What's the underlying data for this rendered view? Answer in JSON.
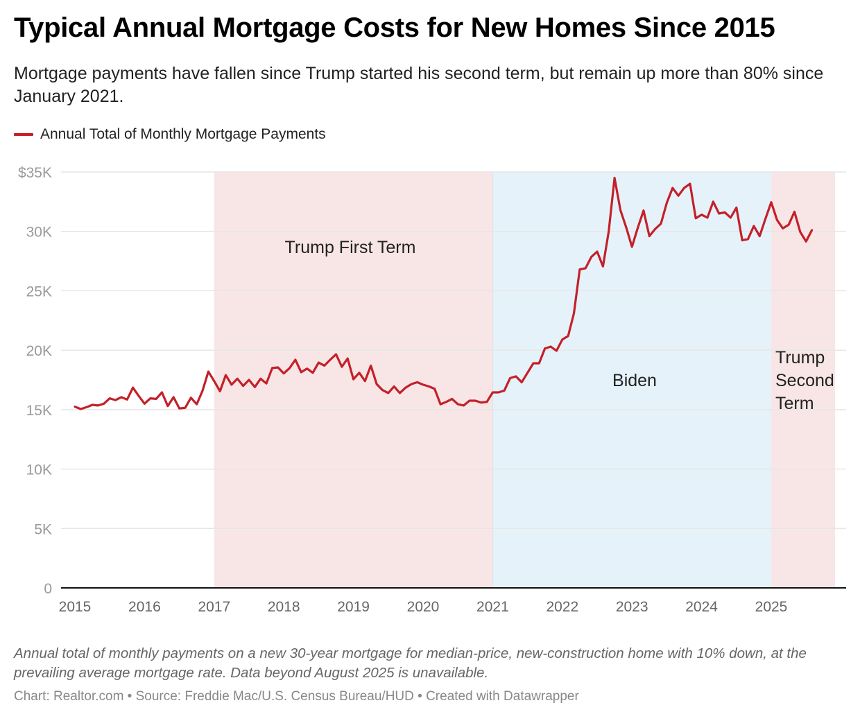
{
  "header": {
    "title": "Typical Annual Mortgage Costs for New Homes Since 2015",
    "subtitle": "Mortgage payments have fallen since Trump started his second term, but remain up more than 80% since January 2021."
  },
  "legend": {
    "label": "Annual Total of Monthly Mortgage Payments",
    "color": "#c3202a"
  },
  "footer": {
    "notes": "Annual total of monthly payments on a new 30-year mortgage for median-price, new-construction home with 10% down, at the prevailing average mortgage rate. Data beyond August 2025 is unavailable.",
    "source": "Chart: Realtor.com • Source: Freddie Mac/U.S. Census Bureau/HUD • Created with Datawrapper"
  },
  "chart_data": {
    "type": "line",
    "title": "Typical Annual Mortgage Costs for New Homes Since 2015",
    "xlabel": "",
    "ylabel": "",
    "x_start": "2015-01",
    "x_end": "2025-08",
    "x_frequency": "monthly",
    "xlim": [
      2014.9,
      2025.95
    ],
    "ylim": [
      0,
      35000
    ],
    "y_ticks": [
      {
        "value": 0,
        "label": "0"
      },
      {
        "value": 5000,
        "label": "5K"
      },
      {
        "value": 10000,
        "label": "10K"
      },
      {
        "value": 15000,
        "label": "15K"
      },
      {
        "value": 20000,
        "label": "20K"
      },
      {
        "value": 25000,
        "label": "25K"
      },
      {
        "value": 30000,
        "label": "30K"
      },
      {
        "value": 35000,
        "label": "$35K"
      }
    ],
    "x_ticks": [
      {
        "value": 2015,
        "label": "2015"
      },
      {
        "value": 2016,
        "label": "2016"
      },
      {
        "value": 2017,
        "label": "2017"
      },
      {
        "value": 2018,
        "label": "2018"
      },
      {
        "value": 2019,
        "label": "2019"
      },
      {
        "value": 2020,
        "label": "2020"
      },
      {
        "value": 2021,
        "label": "2021"
      },
      {
        "value": 2022,
        "label": "2022"
      },
      {
        "value": 2023,
        "label": "2023"
      },
      {
        "value": 2024,
        "label": "2024"
      },
      {
        "value": 2025,
        "label": "2025"
      }
    ],
    "grid": true,
    "legend_position": "top-left",
    "series": [
      {
        "name": "Annual Total of Monthly Mortgage Payments",
        "color": "#c3202a",
        "values": [
          15250,
          15050,
          15200,
          15400,
          15350,
          15500,
          15950,
          15800,
          16050,
          15850,
          16850,
          16150,
          15500,
          15950,
          15900,
          16450,
          15300,
          16050,
          15100,
          15150,
          16000,
          15450,
          16600,
          18200,
          17400,
          16550,
          17900,
          17100,
          17600,
          17000,
          17500,
          16900,
          17600,
          17200,
          18500,
          18550,
          18050,
          18500,
          19200,
          18150,
          18450,
          18100,
          18950,
          18700,
          19200,
          19650,
          18600,
          19300,
          17550,
          18100,
          17400,
          18700,
          17150,
          16650,
          16400,
          16950,
          16400,
          16850,
          17150,
          17300,
          17100,
          16950,
          16750,
          15450,
          15650,
          15900,
          15450,
          15350,
          15750,
          15750,
          15600,
          15650,
          16450,
          16450,
          16600,
          17650,
          17800,
          17300,
          18100,
          18900,
          18900,
          20150,
          20300,
          19950,
          20900,
          21200,
          23100,
          26800,
          26900,
          27850,
          28300,
          27050,
          30000,
          34500,
          31800,
          30350,
          28700,
          30300,
          31750,
          29600,
          30200,
          30650,
          32400,
          33650,
          33000,
          33650,
          34000,
          31100,
          31400,
          31150,
          32500,
          31500,
          31600,
          31150,
          32000,
          29250,
          29350,
          30450,
          29600,
          31050,
          32450,
          30950,
          30250,
          30550,
          31650,
          29950,
          29150,
          30100
        ]
      }
    ],
    "shaded_periods": [
      {
        "label": "Trump First Term",
        "start": "2017-01",
        "end": "2021-01",
        "color": "#f8e6e6"
      },
      {
        "label": "Biden",
        "start": "2021-01",
        "end": "2025-01",
        "color": "#e6f2f9"
      },
      {
        "label": "Trump Second Term",
        "start": "2025-01",
        "end": "2025-12",
        "color": "#f8e6e6"
      }
    ],
    "annotations": [
      {
        "text": "Trump First Term",
        "x": "2018-06",
        "y": 28500
      },
      {
        "text": "Biden",
        "x": "2022-09",
        "y": 17500
      },
      {
        "text": "Trump\nSecond\nTerm",
        "x": "2025-01",
        "y": 18000
      }
    ]
  }
}
